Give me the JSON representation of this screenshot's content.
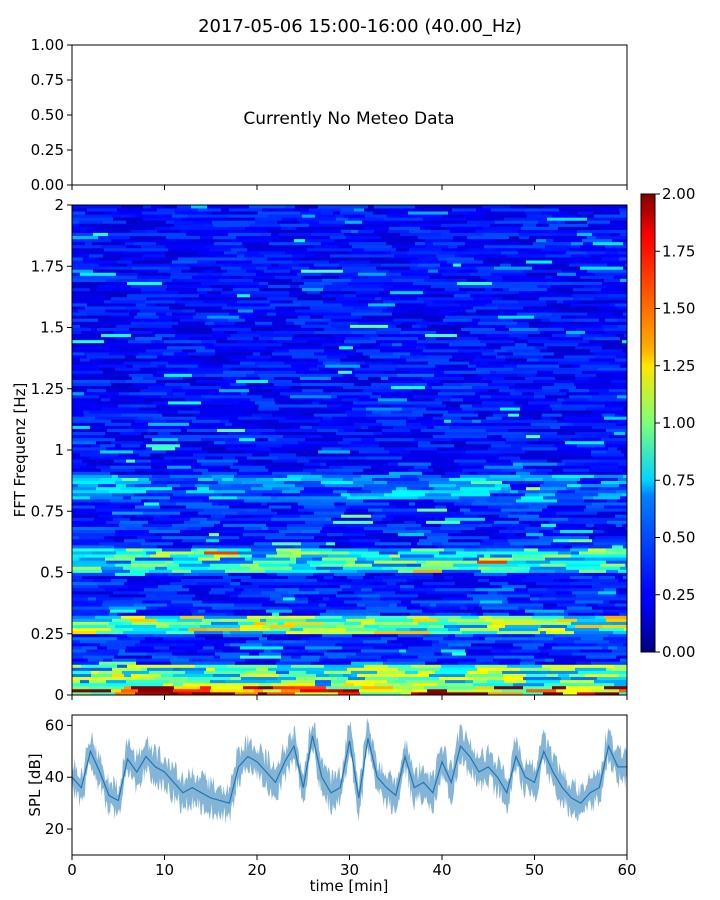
{
  "title": "2017-05-06 15:00-16:00 (40.00_Hz)",
  "chart_data": [
    {
      "panel": "meteo",
      "type": "line",
      "message": "Currently No Meteo Data",
      "ylim": [
        0,
        1
      ],
      "yticks": [
        "0.00",
        "0.25",
        "0.50",
        "0.75",
        "1.00"
      ],
      "xlim": [
        0,
        60
      ],
      "series": []
    },
    {
      "panel": "spectrogram",
      "type": "heatmap",
      "ylabel": "FFT Frequenz [Hz]",
      "ylim": [
        0,
        2
      ],
      "yticks": [
        "0",
        "0.25",
        "0.5",
        "0.75",
        "1",
        "1.25",
        "1.5",
        "1.75",
        "2"
      ],
      "xlim": [
        0,
        60
      ],
      "colormap": "jet",
      "colorbar": {
        "range": [
          0,
          2
        ],
        "ticks": [
          "0.00",
          "0.25",
          "0.50",
          "0.75",
          "1.00",
          "1.25",
          "1.50",
          "1.75",
          "2.00"
        ]
      },
      "bands": [
        {
          "f": [
            0.0,
            0.04
          ],
          "level": 1.75
        },
        {
          "f": [
            0.04,
            0.13
          ],
          "level": 0.95
        },
        {
          "f": [
            0.25,
            0.33
          ],
          "level": 1.05
        },
        {
          "f": [
            0.5,
            0.6
          ],
          "level": 0.85
        },
        {
          "f": [
            0.8,
            0.9
          ],
          "level": 0.55
        },
        {
          "f": [
            0.9,
            2.0
          ],
          "level": 0.3
        }
      ]
    },
    {
      "panel": "spl",
      "type": "line",
      "ylabel": "SPL [dB]",
      "xlabel": "time [min]",
      "xlim": [
        0,
        60
      ],
      "ylim": [
        10,
        64
      ],
      "xticks": [
        "0",
        "10",
        "20",
        "30",
        "40",
        "50",
        "60"
      ],
      "yticks": [
        "20",
        "40",
        "60"
      ],
      "color": "#1f77b4",
      "series": [
        {
          "x": [
            0,
            1,
            2,
            3,
            4,
            5,
            6,
            7,
            8,
            9,
            10,
            11,
            12,
            13,
            14,
            15,
            16,
            17,
            18,
            19,
            20,
            21,
            22,
            23,
            24,
            25,
            26,
            27,
            28,
            29,
            30,
            31,
            32,
            33,
            34,
            35,
            36,
            37,
            38,
            39,
            40,
            41,
            42,
            43,
            44,
            45,
            46,
            47,
            48,
            49,
            50,
            51,
            52,
            53,
            54,
            55,
            56,
            57,
            58,
            59,
            60
          ],
          "y": [
            40,
            36,
            50,
            42,
            33,
            31,
            47,
            42,
            48,
            44,
            42,
            38,
            34,
            36,
            34,
            32,
            31,
            30,
            44,
            48,
            46,
            42,
            38,
            46,
            52,
            36,
            56,
            40,
            34,
            36,
            54,
            32,
            55,
            40,
            36,
            33,
            48,
            36,
            38,
            34,
            46,
            38,
            52,
            48,
            42,
            44,
            40,
            34,
            48,
            40,
            38,
            50,
            42,
            36,
            32,
            30,
            34,
            36,
            52,
            44,
            44
          ]
        }
      ]
    }
  ]
}
